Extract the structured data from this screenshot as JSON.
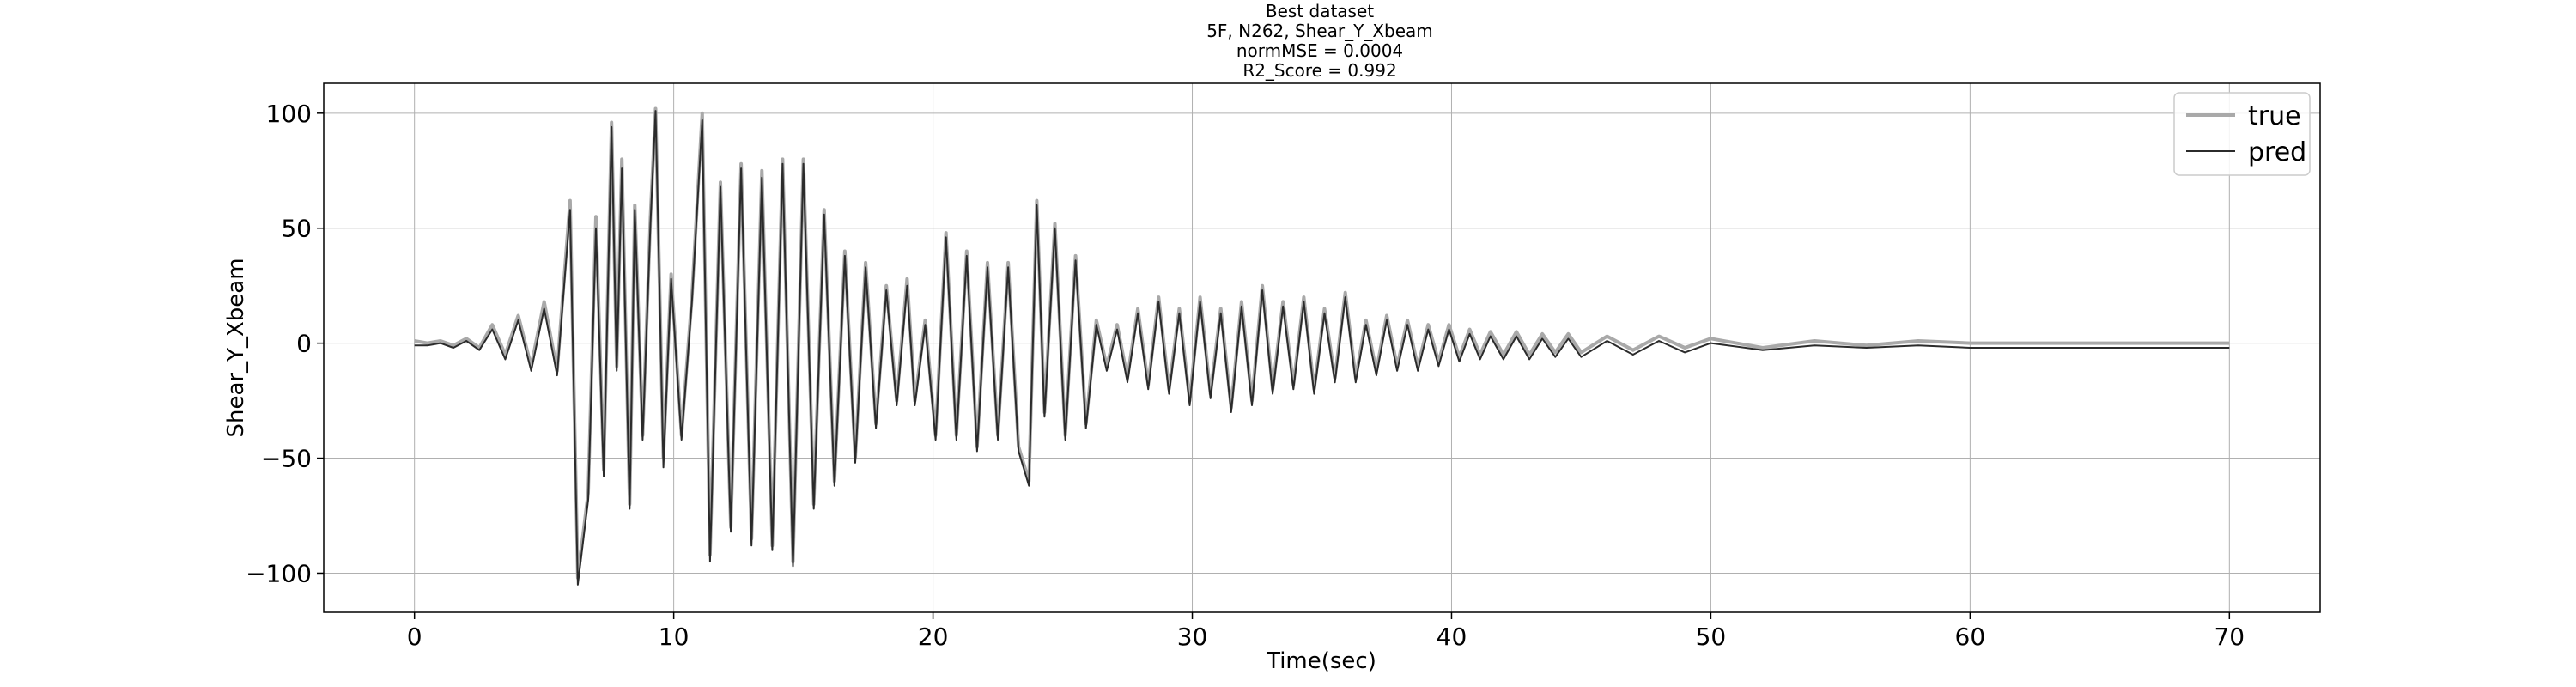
{
  "chart_data": {
    "type": "line",
    "title_lines": [
      "Best dataset",
      "5F, N262, Shear_Y_Xbeam",
      "normMSE = 0.0004",
      "R2_Score = 0.992"
    ],
    "xlabel": "Time(sec)",
    "ylabel": "Shear_Y_Xbeam",
    "xlim": [
      -3.5,
      73.5
    ],
    "ylim": [
      -117,
      113
    ],
    "xticks": [
      0,
      10,
      20,
      30,
      40,
      50,
      60,
      70
    ],
    "yticks": [
      -100,
      -50,
      0,
      50,
      100
    ],
    "grid": true,
    "legend_position": "top-right",
    "series": [
      {
        "name": "true",
        "color": "#a9a9a9",
        "points": [
          [
            0,
            1
          ],
          [
            0.5,
            0
          ],
          [
            1,
            1
          ],
          [
            1.5,
            -1
          ],
          [
            2,
            2
          ],
          [
            2.5,
            -2
          ],
          [
            3,
            8
          ],
          [
            3.5,
            -5
          ],
          [
            4,
            12
          ],
          [
            4.5,
            -10
          ],
          [
            5,
            18
          ],
          [
            5.5,
            -12
          ],
          [
            6,
            62
          ],
          [
            6.3,
            -102
          ],
          [
            6.7,
            -65
          ],
          [
            7,
            55
          ],
          [
            7.3,
            -55
          ],
          [
            7.6,
            96
          ],
          [
            7.8,
            -10
          ],
          [
            8,
            80
          ],
          [
            8.3,
            -70
          ],
          [
            8.5,
            60
          ],
          [
            8.8,
            -40
          ],
          [
            9.1,
            55
          ],
          [
            9.3,
            102
          ],
          [
            9.6,
            -50
          ],
          [
            9.9,
            30
          ],
          [
            10.3,
            -40
          ],
          [
            10.7,
            20
          ],
          [
            11.1,
            100
          ],
          [
            11.4,
            -92
          ],
          [
            11.8,
            70
          ],
          [
            12.2,
            -80
          ],
          [
            12.6,
            78
          ],
          [
            13,
            -85
          ],
          [
            13.4,
            75
          ],
          [
            13.8,
            -88
          ],
          [
            14.2,
            80
          ],
          [
            14.6,
            -95
          ],
          [
            15,
            80
          ],
          [
            15.4,
            -70
          ],
          [
            15.8,
            58
          ],
          [
            16.2,
            -60
          ],
          [
            16.6,
            40
          ],
          [
            17,
            -50
          ],
          [
            17.4,
            35
          ],
          [
            17.8,
            -35
          ],
          [
            18.2,
            25
          ],
          [
            18.6,
            -25
          ],
          [
            19,
            28
          ],
          [
            19.3,
            -25
          ],
          [
            19.7,
            10
          ],
          [
            20.1,
            -40
          ],
          [
            20.5,
            48
          ],
          [
            20.9,
            -40
          ],
          [
            21.3,
            40
          ],
          [
            21.7,
            -45
          ],
          [
            22.1,
            35
          ],
          [
            22.5,
            -40
          ],
          [
            22.9,
            35
          ],
          [
            23.3,
            -45
          ],
          [
            23.7,
            -60
          ],
          [
            24,
            62
          ],
          [
            24.3,
            -30
          ],
          [
            24.7,
            52
          ],
          [
            25.1,
            -40
          ],
          [
            25.5,
            38
          ],
          [
            25.9,
            -35
          ],
          [
            26.3,
            10
          ],
          [
            26.7,
            -10
          ],
          [
            27.1,
            8
          ],
          [
            27.5,
            -15
          ],
          [
            27.9,
            15
          ],
          [
            28.3,
            -18
          ],
          [
            28.7,
            20
          ],
          [
            29.1,
            -20
          ],
          [
            29.5,
            15
          ],
          [
            29.9,
            -25
          ],
          [
            30.3,
            20
          ],
          [
            30.7,
            -22
          ],
          [
            31.1,
            15
          ],
          [
            31.5,
            -28
          ],
          [
            31.9,
            18
          ],
          [
            32.3,
            -25
          ],
          [
            32.7,
            25
          ],
          [
            33.1,
            -20
          ],
          [
            33.5,
            18
          ],
          [
            33.9,
            -18
          ],
          [
            34.3,
            20
          ],
          [
            34.7,
            -20
          ],
          [
            35.1,
            15
          ],
          [
            35.5,
            -15
          ],
          [
            35.9,
            22
          ],
          [
            36.3,
            -15
          ],
          [
            36.7,
            10
          ],
          [
            37.1,
            -12
          ],
          [
            37.5,
            12
          ],
          [
            37.9,
            -10
          ],
          [
            38.3,
            10
          ],
          [
            38.7,
            -10
          ],
          [
            39.1,
            8
          ],
          [
            39.5,
            -8
          ],
          [
            39.9,
            8
          ],
          [
            40.3,
            -6
          ],
          [
            40.7,
            6
          ],
          [
            41.1,
            -5
          ],
          [
            41.5,
            5
          ],
          [
            42,
            -5
          ],
          [
            42.5,
            5
          ],
          [
            43,
            -5
          ],
          [
            43.5,
            4
          ],
          [
            44,
            -4
          ],
          [
            44.5,
            4
          ],
          [
            45,
            -4
          ],
          [
            46,
            3
          ],
          [
            47,
            -3
          ],
          [
            48,
            3
          ],
          [
            49,
            -2
          ],
          [
            50,
            2
          ],
          [
            52,
            -2
          ],
          [
            54,
            1
          ],
          [
            56,
            -1
          ],
          [
            58,
            1
          ],
          [
            60,
            0
          ],
          [
            65,
            0
          ],
          [
            70,
            0
          ]
        ]
      },
      {
        "name": "pred",
        "color": "#2b2b2b",
        "points": [
          [
            0,
            -1
          ],
          [
            0.5,
            -1
          ],
          [
            1,
            0
          ],
          [
            1.5,
            -2
          ],
          [
            2,
            1
          ],
          [
            2.5,
            -3
          ],
          [
            3,
            6
          ],
          [
            3.5,
            -7
          ],
          [
            4,
            10
          ],
          [
            4.5,
            -12
          ],
          [
            5,
            15
          ],
          [
            5.5,
            -14
          ],
          [
            6,
            58
          ],
          [
            6.3,
            -105
          ],
          [
            6.7,
            -68
          ],
          [
            7,
            50
          ],
          [
            7.3,
            -58
          ],
          [
            7.6,
            94
          ],
          [
            7.8,
            -12
          ],
          [
            8,
            76
          ],
          [
            8.3,
            -72
          ],
          [
            8.5,
            58
          ],
          [
            8.8,
            -42
          ],
          [
            9.1,
            52
          ],
          [
            9.3,
            101
          ],
          [
            9.6,
            -54
          ],
          [
            9.9,
            28
          ],
          [
            10.3,
            -42
          ],
          [
            10.7,
            18
          ],
          [
            11.1,
            97
          ],
          [
            11.4,
            -95
          ],
          [
            11.8,
            68
          ],
          [
            12.2,
            -82
          ],
          [
            12.6,
            76
          ],
          [
            13,
            -88
          ],
          [
            13.4,
            72
          ],
          [
            13.8,
            -90
          ],
          [
            14.2,
            78
          ],
          [
            14.6,
            -97
          ],
          [
            15,
            78
          ],
          [
            15.4,
            -72
          ],
          [
            15.8,
            56
          ],
          [
            16.2,
            -62
          ],
          [
            16.6,
            38
          ],
          [
            17,
            -52
          ],
          [
            17.4,
            33
          ],
          [
            17.8,
            -37
          ],
          [
            18.2,
            23
          ],
          [
            18.6,
            -27
          ],
          [
            19,
            25
          ],
          [
            19.3,
            -27
          ],
          [
            19.7,
            8
          ],
          [
            20.1,
            -42
          ],
          [
            20.5,
            46
          ],
          [
            20.9,
            -42
          ],
          [
            21.3,
            38
          ],
          [
            21.7,
            -47
          ],
          [
            22.1,
            33
          ],
          [
            22.5,
            -42
          ],
          [
            22.9,
            33
          ],
          [
            23.3,
            -47
          ],
          [
            23.7,
            -62
          ],
          [
            24,
            60
          ],
          [
            24.3,
            -32
          ],
          [
            24.7,
            50
          ],
          [
            25.1,
            -42
          ],
          [
            25.5,
            36
          ],
          [
            25.9,
            -37
          ],
          [
            26.3,
            8
          ],
          [
            26.7,
            -12
          ],
          [
            27.1,
            6
          ],
          [
            27.5,
            -17
          ],
          [
            27.9,
            13
          ],
          [
            28.3,
            -20
          ],
          [
            28.7,
            18
          ],
          [
            29.1,
            -22
          ],
          [
            29.5,
            13
          ],
          [
            29.9,
            -27
          ],
          [
            30.3,
            18
          ],
          [
            30.7,
            -24
          ],
          [
            31.1,
            13
          ],
          [
            31.5,
            -30
          ],
          [
            31.9,
            16
          ],
          [
            32.3,
            -27
          ],
          [
            32.7,
            23
          ],
          [
            33.1,
            -22
          ],
          [
            33.5,
            16
          ],
          [
            33.9,
            -20
          ],
          [
            34.3,
            18
          ],
          [
            34.7,
            -22
          ],
          [
            35.1,
            13
          ],
          [
            35.5,
            -17
          ],
          [
            35.9,
            20
          ],
          [
            36.3,
            -17
          ],
          [
            36.7,
            8
          ],
          [
            37.1,
            -14
          ],
          [
            37.5,
            10
          ],
          [
            37.9,
            -12
          ],
          [
            38.3,
            8
          ],
          [
            38.7,
            -12
          ],
          [
            39.1,
            6
          ],
          [
            39.5,
            -10
          ],
          [
            39.9,
            6
          ],
          [
            40.3,
            -8
          ],
          [
            40.7,
            4
          ],
          [
            41.1,
            -7
          ],
          [
            41.5,
            3
          ],
          [
            42,
            -7
          ],
          [
            42.5,
            3
          ],
          [
            43,
            -7
          ],
          [
            43.5,
            2
          ],
          [
            44,
            -6
          ],
          [
            44.5,
            2
          ],
          [
            45,
            -6
          ],
          [
            46,
            1
          ],
          [
            47,
            -5
          ],
          [
            48,
            1
          ],
          [
            49,
            -4
          ],
          [
            50,
            0
          ],
          [
            52,
            -3
          ],
          [
            54,
            -1
          ],
          [
            56,
            -2
          ],
          [
            58,
            -1
          ],
          [
            60,
            -2
          ],
          [
            65,
            -2
          ],
          [
            70,
            -2
          ]
        ]
      }
    ]
  }
}
